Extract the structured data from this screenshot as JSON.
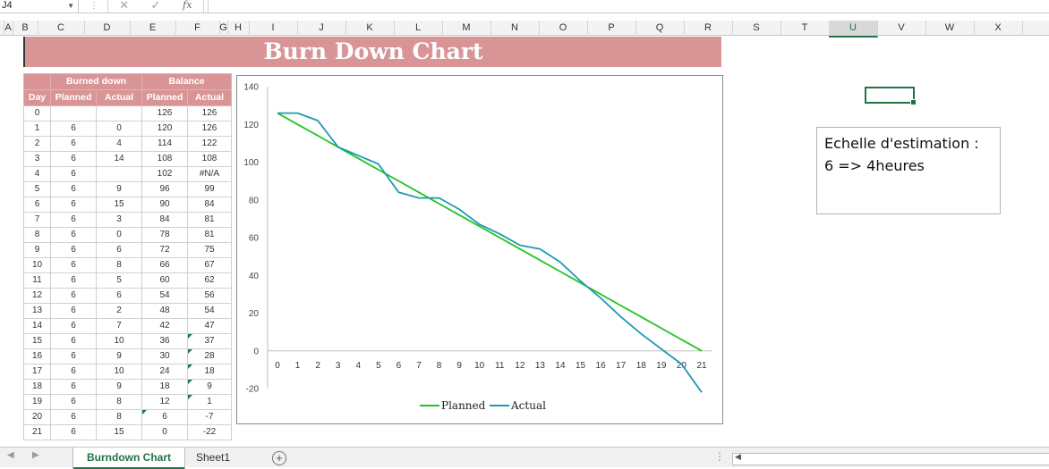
{
  "formula_bar": {
    "name_box": "J4",
    "fx_label": "fx",
    "cancel_glyph": "✕",
    "enter_glyph": "✓"
  },
  "columns": [
    "A",
    "B",
    "C",
    "D",
    "E",
    "F",
    "G",
    "H",
    "I",
    "J",
    "K",
    "L",
    "M",
    "N",
    "O",
    "P",
    "Q",
    "R",
    "S",
    "T",
    "U",
    "V",
    "W",
    "X"
  ],
  "selected_column": "U",
  "title": "Burn Down Chart",
  "table": {
    "group_headers": {
      "burned": "Burned down",
      "balance": "Balance"
    },
    "headers": [
      "Day",
      "Planned",
      "Actual",
      "Planned",
      "Actual"
    ],
    "rows": [
      [
        "0",
        "",
        "",
        "126",
        "126"
      ],
      [
        "1",
        "6",
        "0",
        "120",
        "126"
      ],
      [
        "2",
        "6",
        "4",
        "114",
        "122"
      ],
      [
        "3",
        "6",
        "14",
        "108",
        "108"
      ],
      [
        "4",
        "6",
        "",
        "102",
        "#N/A"
      ],
      [
        "5",
        "6",
        "9",
        "96",
        "99"
      ],
      [
        "6",
        "6",
        "15",
        "90",
        "84"
      ],
      [
        "7",
        "6",
        "3",
        "84",
        "81"
      ],
      [
        "8",
        "6",
        "0",
        "78",
        "81"
      ],
      [
        "9",
        "6",
        "6",
        "72",
        "75"
      ],
      [
        "10",
        "6",
        "8",
        "66",
        "67"
      ],
      [
        "11",
        "6",
        "5",
        "60",
        "62"
      ],
      [
        "12",
        "6",
        "6",
        "54",
        "56"
      ],
      [
        "13",
        "6",
        "2",
        "48",
        "54"
      ],
      [
        "14",
        "6",
        "7",
        "42",
        "47"
      ],
      [
        "15",
        "6",
        "10",
        "36",
        "37"
      ],
      [
        "16",
        "6",
        "9",
        "30",
        "28"
      ],
      [
        "17",
        "6",
        "10",
        "24",
        "18"
      ],
      [
        "18",
        "6",
        "9",
        "18",
        "9"
      ],
      [
        "19",
        "6",
        "8",
        "12",
        "1"
      ],
      [
        "20",
        "6",
        "8",
        "6",
        "-7"
      ],
      [
        "21",
        "6",
        "15",
        "0",
        "-22"
      ]
    ]
  },
  "chart_data": {
    "type": "line",
    "title": "",
    "xlabel": "",
    "ylabel": "",
    "x": [
      0,
      1,
      2,
      3,
      4,
      5,
      6,
      7,
      8,
      9,
      10,
      11,
      12,
      13,
      14,
      15,
      16,
      17,
      18,
      19,
      20,
      21
    ],
    "ylim": [
      -20,
      140
    ],
    "yticks": [
      -20,
      0,
      20,
      40,
      60,
      80,
      100,
      120,
      140
    ],
    "legend_position": "bottom",
    "grid": false,
    "series": [
      {
        "name": "Planned",
        "color": "#22c31e",
        "values": [
          126,
          120,
          114,
          108,
          102,
          96,
          90,
          84,
          78,
          72,
          66,
          60,
          54,
          48,
          42,
          36,
          30,
          24,
          18,
          12,
          6,
          0
        ]
      },
      {
        "name": "Actual",
        "color": "#1f99b3",
        "values": [
          126,
          126,
          122,
          108,
          null,
          99,
          84,
          81,
          81,
          75,
          67,
          62,
          56,
          54,
          47,
          37,
          28,
          18,
          9,
          1,
          -7,
          -22
        ]
      }
    ]
  },
  "note": "Echelle d'estimation :\n6 => 4heures",
  "sheets": [
    {
      "name": "Burndown Chart",
      "active": true
    },
    {
      "name": "Sheet1",
      "active": false
    }
  ],
  "add_sheet_glyph": "+"
}
